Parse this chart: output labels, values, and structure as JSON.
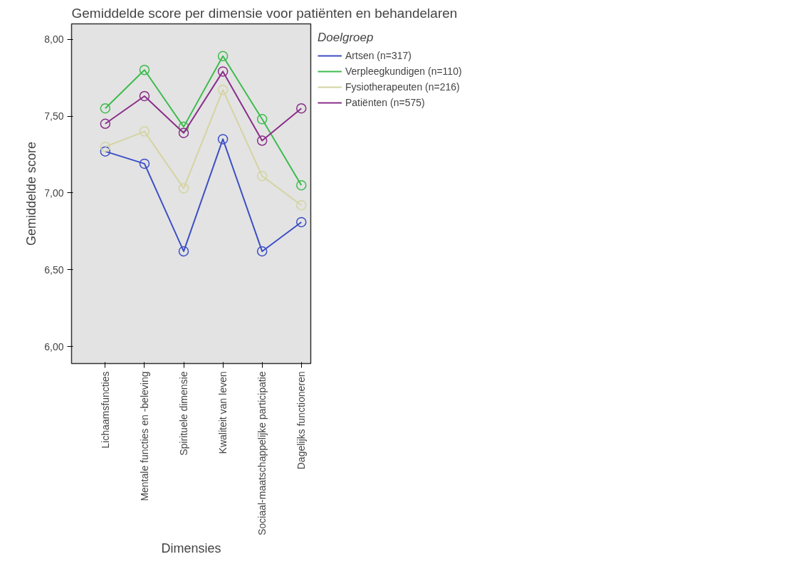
{
  "chart_data": {
    "type": "line",
    "title": "Gemiddelde score per dimensie voor patiënten en behandelaren",
    "xlabel": "Dimensies",
    "ylabel": "Gemiddelde score",
    "legend_title": "Doelgroep",
    "categories": [
      "Lichaamsfuncties",
      "Mentale functies en -beleving",
      "Spirituele dimensie",
      "Kwaliteit van leven",
      "Sociaal-maatschappelijke participatie",
      "Dagelijks functioneren"
    ],
    "series": [
      {
        "name": "Artsen (n=317)",
        "color": "#3c4fc4",
        "values": [
          7.27,
          7.19,
          6.62,
          7.35,
          6.62,
          6.81
        ]
      },
      {
        "name": "Verpleegkundigen (n=110)",
        "color": "#3dbb4e",
        "values": [
          7.55,
          7.8,
          7.43,
          7.89,
          7.48,
          7.05
        ]
      },
      {
        "name": "Fysiotherapeuten (n=216)",
        "color": "#d4d4a2",
        "values": [
          7.3,
          7.4,
          7.03,
          7.67,
          7.11,
          6.92
        ]
      },
      {
        "name": "Patiënten (n=575)",
        "color": "#8a2e8a",
        "values": [
          7.45,
          7.63,
          7.39,
          7.79,
          7.34,
          7.55
        ]
      }
    ],
    "ylim": [
      5.89,
      8.1
    ],
    "yticks": [
      {
        "value": 6,
        "label": "6,00"
      },
      {
        "value": 6.5,
        "label": "6,50"
      },
      {
        "value": 7,
        "label": "7,00"
      },
      {
        "value": 7.5,
        "label": "7,50"
      },
      {
        "value": 8,
        "label": "8,00"
      }
    ],
    "grid": false,
    "legend": "right",
    "marker": "circle",
    "line_style": "solid"
  }
}
